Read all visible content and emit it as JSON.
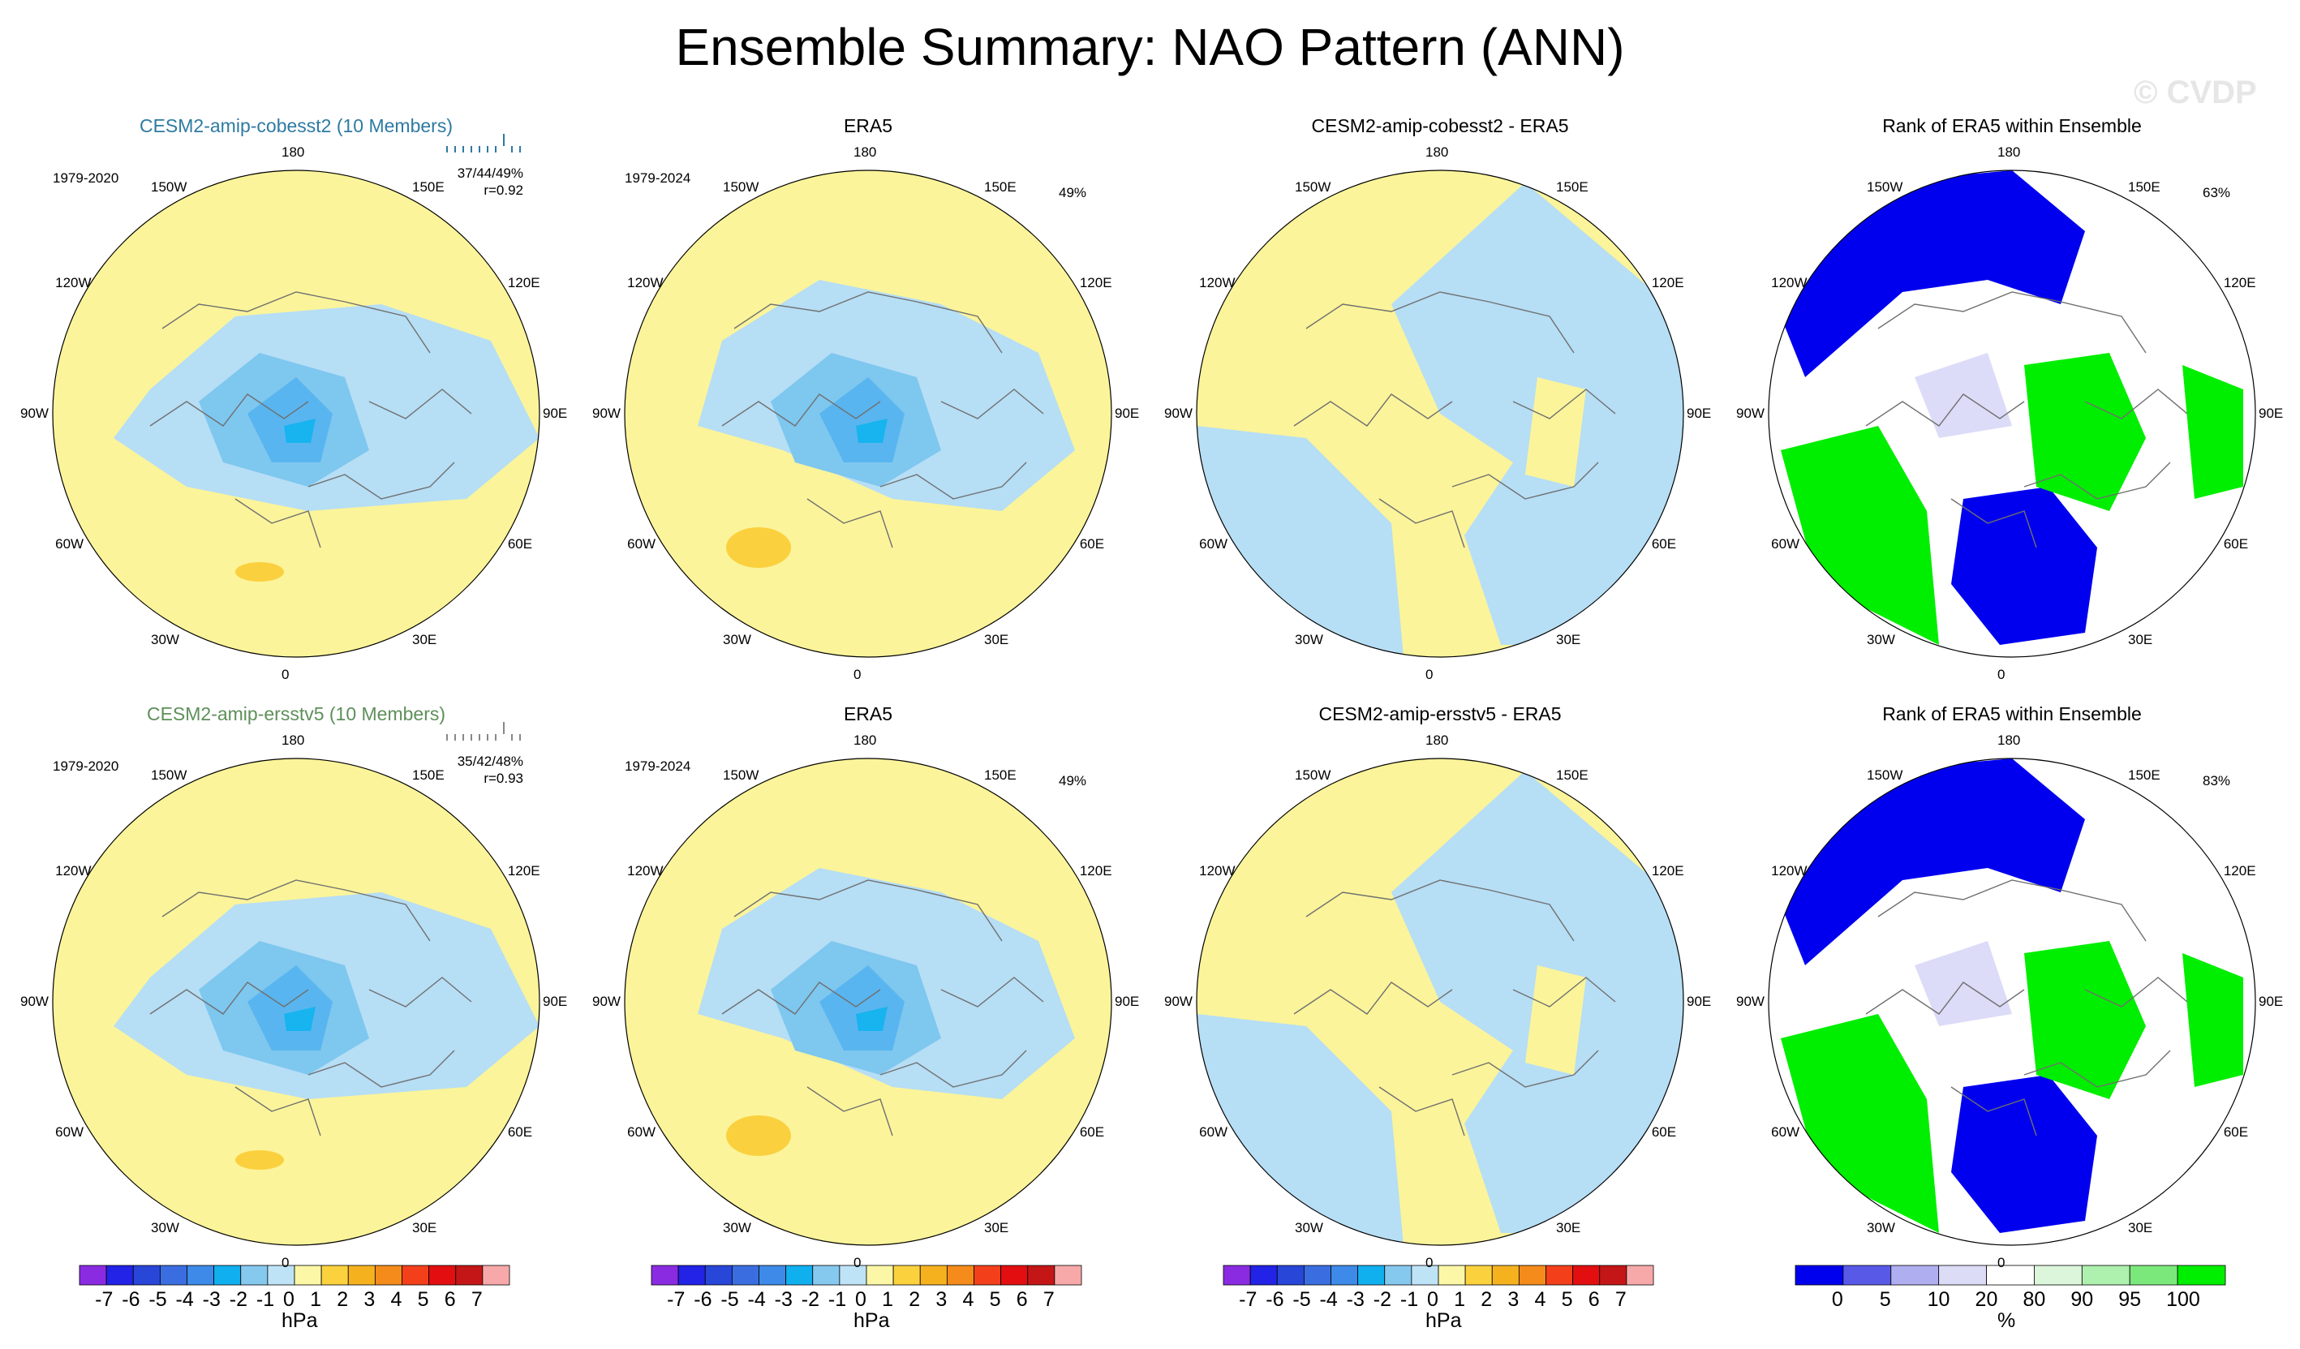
{
  "title": "Ensemble Summary: NAO Pattern (ANN)",
  "watermark": "© CVDP",
  "colors": {
    "pos_light": "#fbf49a",
    "pos_mid": "#fbd03e",
    "neg_light": "#b6def5",
    "neg_mid": "#7ec7ef",
    "neg_dark": "#59b5ef",
    "neg_core": "#17b4ef",
    "rank_low": "#0000ee",
    "rank_lowmid": "#dcdcf8",
    "rank_highmid": "#dcf8dc",
    "rank_high": "#00ee00",
    "model1": "#2e7aa3",
    "model2": "#5e8f5a"
  },
  "lon_labels": [
    "180",
    "150E",
    "120E",
    "90E",
    "60E",
    "30E",
    "0",
    "30W",
    "60W",
    "90W",
    "120W",
    "150W"
  ],
  "chart_data": [
    {
      "type": "map",
      "title": "CESM2-amip-cobesst2 (10 Members)",
      "period": "1979-2020",
      "stat": "37/44/49%",
      "corr": "r=0.92",
      "units": "hPa",
      "pattern": "nao_model"
    },
    {
      "type": "map",
      "title": "ERA5",
      "period": "1979-2024",
      "percent": "49%",
      "units": "hPa",
      "pattern": "nao_obs"
    },
    {
      "type": "map",
      "title": "CESM2-amip-cobesst2 - ERA5",
      "units": "hPa",
      "pattern": "diff"
    },
    {
      "type": "map",
      "title": "Rank of ERA5 within Ensemble",
      "percent": "63%",
      "units": "%",
      "pattern": "rank"
    },
    {
      "type": "map",
      "title": "CESM2-amip-ersstv5 (10 Members)",
      "period": "1979-2020",
      "stat": "35/42/48%",
      "corr": "r=0.93",
      "units": "hPa",
      "pattern": "nao_model"
    },
    {
      "type": "map",
      "title": "ERA5",
      "period": "1979-2024",
      "percent": "49%",
      "units": "hPa",
      "pattern": "nao_obs"
    },
    {
      "type": "map",
      "title": "CESM2-amip-ersstv5 - ERA5",
      "units": "hPa",
      "pattern": "diff"
    },
    {
      "type": "map",
      "title": "Rank of ERA5 within Ensemble",
      "percent": "83%",
      "units": "%",
      "pattern": "rank"
    }
  ],
  "colorbar_hpa": {
    "labels": [
      "-7",
      "-6",
      "-5",
      "-4",
      "-3",
      "-2",
      "-1",
      "0",
      "1",
      "2",
      "3",
      "4",
      "5",
      "6",
      "7"
    ],
    "colors": [
      "#8a2be2",
      "#2323e8",
      "#2846d8",
      "#3a6ee0",
      "#3d8ae8",
      "#10b0ef",
      "#86c9ef",
      "#bfe3f6",
      "#fbf7a6",
      "#fbd23e",
      "#f5b21e",
      "#f48b1b",
      "#f3401a",
      "#e30e10",
      "#c41616",
      "#f7a9a9"
    ],
    "units": "hPa"
  },
  "colorbar_rank": {
    "labels": [
      "0",
      "5",
      "10",
      "20",
      "80",
      "90",
      "95",
      "100"
    ],
    "colors": [
      "#0000ee",
      "#5959e8",
      "#aeaef0",
      "#dcdcf6",
      "#ffffff",
      "#dcf6dc",
      "#aef0ae",
      "#7be87b",
      "#00ee00"
    ],
    "units": "%"
  }
}
